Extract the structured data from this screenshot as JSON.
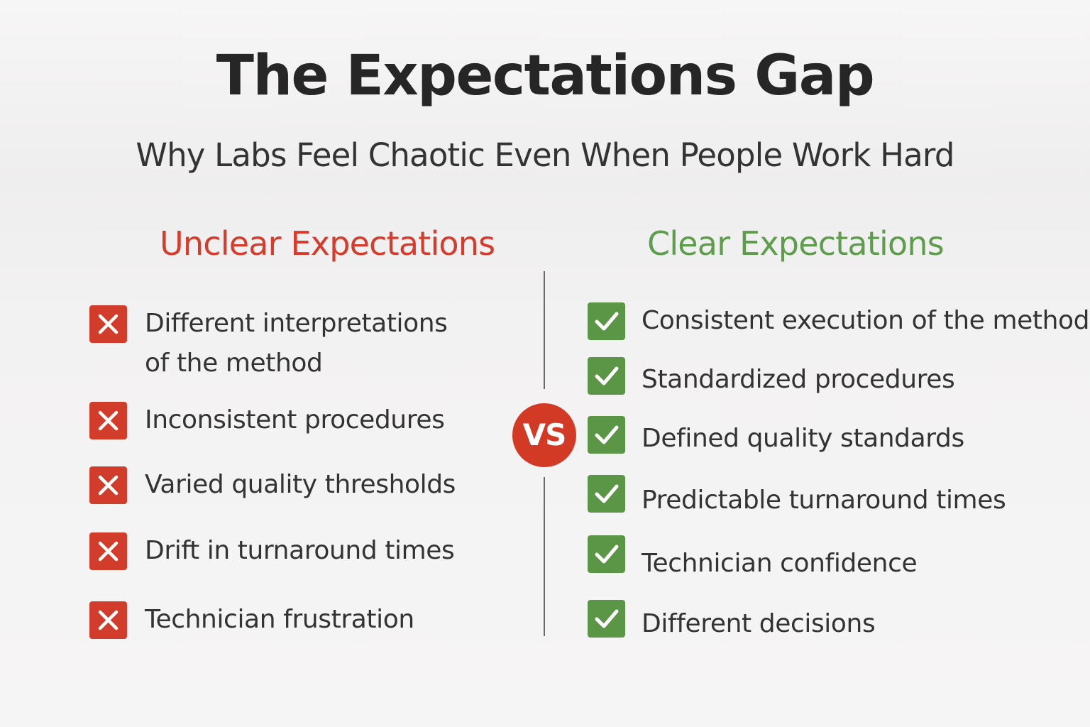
{
  "title": "The Expectations Gap",
  "subtitle": "Why Labs Feel Chaotic Even When People Work Hard",
  "vs_label": "VS",
  "left": {
    "heading": "Unclear Expectations",
    "color": "#d63b2b",
    "icon": "x-icon",
    "items": [
      {
        "line1": "Different interpretations",
        "line2": "of the method"
      },
      {
        "line1": "Inconsistent procedures"
      },
      {
        "line1": "Varied quality thresholds"
      },
      {
        "line1": "Drift in turnaround times"
      },
      {
        "line1": "Technician frustration"
      }
    ]
  },
  "right": {
    "heading": "Clear Expectations",
    "color": "#5e9d4c",
    "icon": "check-icon",
    "items": [
      {
        "line1": "Consistent execution of the method"
      },
      {
        "line1": "Standardized procedures"
      },
      {
        "line1": "Defined quality standards"
      },
      {
        "line1": "Predictable turnaround times"
      },
      {
        "line1": "Technician confidence"
      },
      {
        "line1": "Different decisions"
      }
    ]
  }
}
